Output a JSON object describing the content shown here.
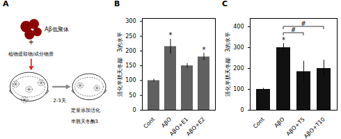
{
  "chart_data": [
    {
      "type": "diagram",
      "title": "A",
      "annotations": [
        "Aβ低聚体",
        "+",
        "植物提取物/成分物质",
        "2-3天",
        "定量添加活化",
        "半胱天冬酶3"
      ]
    },
    {
      "type": "bar",
      "title": "B",
      "categories": [
        "Cont",
        "AβO",
        "AβO+E1",
        "AβO+E2"
      ],
      "values": [
        100,
        215,
        150,
        180
      ],
      "errors": [
        5,
        25,
        8,
        12
      ],
      "color": "#606060",
      "ylabel": "活化半胱天冬鄙　3的水平",
      "ylim": [
        0,
        310
      ],
      "yticks": [
        0,
        50,
        100,
        150,
        200,
        250,
        300
      ],
      "significance": [
        {
          "category": "AβO",
          "symbol": "*"
        },
        {
          "category": "AβO+E2",
          "symbol": "*"
        }
      ]
    },
    {
      "type": "bar",
      "title": "C",
      "categories": [
        "Cont",
        "AβO",
        "AβO+T5",
        "AβO+T10"
      ],
      "values": [
        100,
        300,
        185,
        200
      ],
      "errors": [
        5,
        20,
        50,
        40
      ],
      "color": "#111111",
      "ylabel": "活化半胱天冬鄙　3的水平",
      "ylim": [
        0,
        440
      ],
      "yticks": [
        0,
        100,
        200,
        300,
        400
      ],
      "significance": [
        {
          "category": "AβO",
          "symbol": "*"
        }
      ],
      "brackets": [
        {
          "from": "AβO",
          "to": "AβO+T5",
          "y": 370,
          "symbol": "#"
        },
        {
          "from": "AβO",
          "to": "AβO+T10",
          "y": 400,
          "symbol": "#"
        }
      ]
    }
  ]
}
